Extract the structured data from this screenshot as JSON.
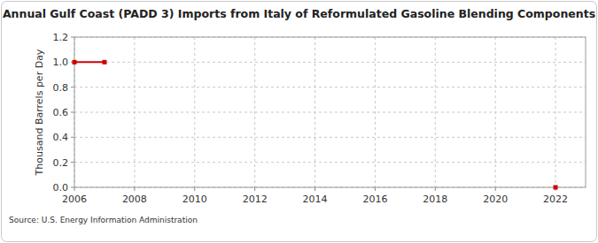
{
  "chart_data": {
    "type": "line",
    "title": "Annual Gulf Coast (PADD 3) Imports from Italy of Reformulated Gasoline Blending Components",
    "y_label": "Thousand Barrels per Day",
    "source": "Source: U.S. Energy Information Administration",
    "x": [
      2006,
      2007,
      2008,
      2009,
      2010,
      2011,
      2012,
      2013,
      2014,
      2015,
      2016,
      2017,
      2018,
      2019,
      2020,
      2021,
      2022
    ],
    "values": [
      1,
      1,
      null,
      null,
      null,
      null,
      null,
      null,
      null,
      null,
      null,
      null,
      null,
      null,
      null,
      null,
      0
    ],
    "color": "#cc0000",
    "marker": "square",
    "xlim": [
      2006,
      2023
    ],
    "xticks": [
      2006,
      2008,
      2010,
      2012,
      2014,
      2016,
      2018,
      2020,
      2022
    ],
    "ylim": [
      0,
      1.2
    ],
    "yticks": [
      {
        "value": 0,
        "label": "0.0"
      },
      0.2,
      0.4,
      0.6,
      0.8,
      {
        "value": 1,
        "label": "1.0"
      },
      1.2
    ],
    "grid": true
  }
}
